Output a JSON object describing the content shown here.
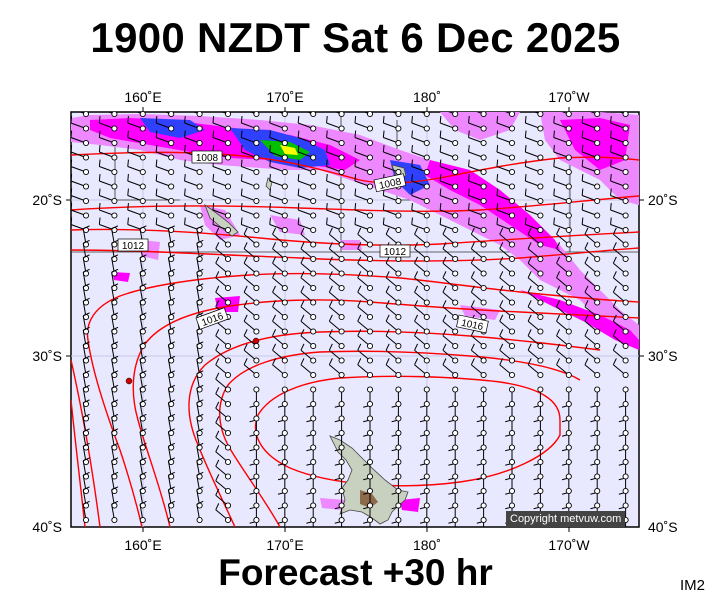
{
  "title": "1900 NZDT Sat 6 Dec 2025",
  "footer": "Forecast +30 hr",
  "model_label": "IM2",
  "copyright": "Copyright metvuw.com",
  "axis": {
    "lon_top": [
      "160˚E",
      "170˚E",
      "180˚",
      "170˚W"
    ],
    "lon_bottom": [
      "160˚E",
      "170˚E",
      "180˚",
      "170˚W"
    ],
    "lat_left": [
      "20˚S",
      "30˚S",
      "40˚S"
    ],
    "lat_right": [
      "20˚S",
      "30˚S",
      "40˚S"
    ]
  },
  "isobar_labels": [
    "1008",
    "1008",
    "1012",
    "1012",
    "1016",
    "1016"
  ],
  "colors": {
    "ocean": "#e8e8ff",
    "isobar": "#ff0000",
    "rain_heavy": "#ff00ff",
    "rain_light": "#ee88ff",
    "land": "#c8d0c0"
  }
}
